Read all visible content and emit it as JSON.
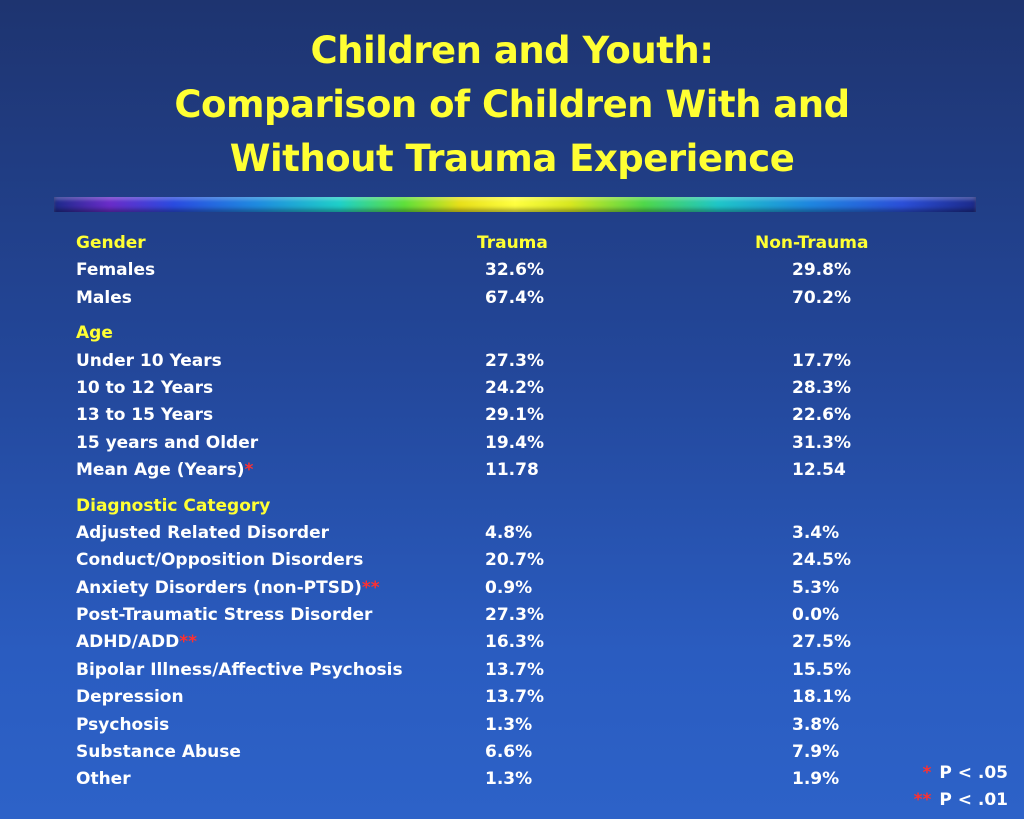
{
  "title": {
    "line1": "Children and Youth:",
    "line2": "Comparison of Children With and",
    "line3": "Without Trauma Experience"
  },
  "header": {
    "label": "Gender",
    "trauma": "Trauma",
    "non_trauma": "Non-Trauma"
  },
  "gender_rows": [
    {
      "label": "Females",
      "marker": "",
      "trauma": "32.6%",
      "non_trauma": "29.8%"
    },
    {
      "label": "Males",
      "marker": "",
      "trauma": "67.4%",
      "non_trauma": "70.2%"
    }
  ],
  "age_heading": "Age",
  "age_rows": [
    {
      "label": "Under 10 Years",
      "marker": "",
      "trauma": "27.3%",
      "non_trauma": "17.7%"
    },
    {
      "label": "10 to 12 Years",
      "marker": "",
      "trauma": "24.2%",
      "non_trauma": "28.3%"
    },
    {
      "label": "13 to 15 Years",
      "marker": "",
      "trauma": "29.1%",
      "non_trauma": "22.6%"
    },
    {
      "label": "15 years and Older",
      "marker": "",
      "trauma": "19.4%",
      "non_trauma": "31.3%"
    },
    {
      "label": "Mean Age (Years)",
      "marker": "*",
      "trauma": "11.78",
      "non_trauma": "12.54"
    }
  ],
  "diag_heading": "Diagnostic Category",
  "diag_rows": [
    {
      "label": "Adjusted Related Disorder",
      "marker": "",
      "trauma": "4.8%",
      "non_trauma": "3.4%"
    },
    {
      "label": "Conduct/Opposition Disorders",
      "marker": "",
      "trauma": "20.7%",
      "non_trauma": "24.5%"
    },
    {
      "label": "Anxiety Disorders (non-PTSD)",
      "marker": "**",
      "trauma": "0.9%",
      "non_trauma": "5.3%"
    },
    {
      "label": "Post-Traumatic Stress Disorder",
      "marker": "",
      "trauma": "27.3%",
      "non_trauma": "0.0%"
    },
    {
      "label": "ADHD/ADD",
      "marker": "**",
      "trauma": "16.3%",
      "non_trauma": "27.5%"
    },
    {
      "label": "Bipolar Illness/Affective Psychosis",
      "marker": "",
      "trauma": "13.7%",
      "non_trauma": "15.5%"
    },
    {
      "label": "Depression",
      "marker": "",
      "trauma": "13.7%",
      "non_trauma": "18.1%"
    },
    {
      "label": "Psychosis",
      "marker": "",
      "trauma": "1.3%",
      "non_trauma": "3.8%"
    },
    {
      "label": "Substance Abuse",
      "marker": "",
      "trauma": "6.6%",
      "non_trauma": "7.9%"
    },
    {
      "label": "Other",
      "marker": "",
      "trauma": "1.3%",
      "non_trauma": "1.9%"
    }
  ],
  "legend": [
    {
      "marker": "*",
      "text": "P < .05"
    },
    {
      "marker": "**",
      "text": "P < .01"
    }
  ],
  "colors": {
    "heading": "#ffff33",
    "marker": "#ff3030",
    "text": "#ffffff"
  }
}
